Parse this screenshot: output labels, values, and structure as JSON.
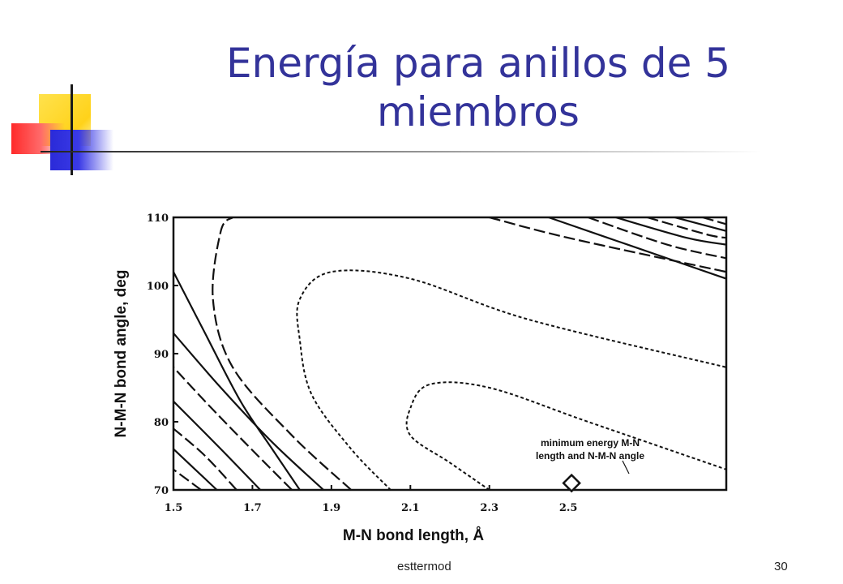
{
  "slide": {
    "title": "Energía para anillos de 5 miembros",
    "footer": "esttermod",
    "page_number": "30"
  },
  "chart_data": {
    "type": "contour",
    "xlabel": "M-N bond length, Å",
    "ylabel": "N-M-N bond angle, deg",
    "xlim": [
      1.5,
      2.9
    ],
    "ylim": [
      70,
      110
    ],
    "x_ticks": [
      "1.5",
      "1.7",
      "1.9",
      "2.1",
      "2.3",
      "2.5"
    ],
    "y_ticks": [
      "70",
      "80",
      "90",
      "100",
      "110"
    ],
    "annotation": {
      "lines": [
        "minimum energy M-N",
        "length and N-M-N angle"
      ],
      "x": 2.5,
      "y": 71
    },
    "minimum_marker": {
      "x": 2.5,
      "y": 71
    },
    "contours": [
      {
        "style": "dashed-fine",
        "points": [
          [
            2.3,
            70
          ],
          [
            2.2,
            74
          ],
          [
            2.1,
            78
          ],
          [
            2.1,
            82
          ],
          [
            2.15,
            85.5
          ],
          [
            2.3,
            85
          ],
          [
            2.55,
            80
          ],
          [
            2.9,
            73
          ]
        ]
      },
      {
        "style": "dashed-fine",
        "points": [
          [
            2.05,
            70
          ],
          [
            1.95,
            76
          ],
          [
            1.85,
            84
          ],
          [
            1.82,
            92
          ],
          [
            1.82,
            98
          ],
          [
            1.9,
            102
          ],
          [
            2.1,
            101
          ],
          [
            2.4,
            95
          ],
          [
            2.9,
            88
          ]
        ]
      },
      {
        "style": "dash",
        "points": [
          [
            1.95,
            70
          ],
          [
            1.8,
            78
          ],
          [
            1.65,
            88
          ],
          [
            1.6,
            98
          ],
          [
            1.62,
            108
          ],
          [
            1.65,
            110
          ]
        ]
      },
      {
        "style": "dash",
        "points": [
          [
            2.3,
            110
          ],
          [
            2.5,
            107
          ],
          [
            2.9,
            102
          ]
        ]
      },
      {
        "style": "solid",
        "points": [
          [
            1.88,
            70
          ],
          [
            1.75,
            77
          ],
          [
            1.62,
            85
          ],
          [
            1.5,
            93
          ]
        ]
      },
      {
        "style": "solid",
        "points": [
          [
            2.45,
            110
          ],
          [
            2.65,
            106
          ],
          [
            2.9,
            101
          ]
        ]
      },
      {
        "style": "dash",
        "points": [
          [
            1.8,
            70
          ],
          [
            1.68,
            77
          ],
          [
            1.58,
            83
          ],
          [
            1.5,
            88
          ]
        ]
      },
      {
        "style": "dash",
        "points": [
          [
            2.55,
            110
          ],
          [
            2.75,
            106
          ],
          [
            2.9,
            104
          ]
        ]
      },
      {
        "style": "solid",
        "points": [
          [
            1.72,
            70
          ],
          [
            1.62,
            76
          ],
          [
            1.5,
            83
          ]
        ]
      },
      {
        "style": "solid",
        "points": [
          [
            2.62,
            110
          ],
          [
            2.8,
            107
          ],
          [
            2.9,
            106
          ]
        ]
      },
      {
        "style": "dash",
        "points": [
          [
            1.66,
            70
          ],
          [
            1.58,
            75
          ],
          [
            1.5,
            79
          ]
        ]
      },
      {
        "style": "dash",
        "points": [
          [
            2.7,
            110
          ],
          [
            2.85,
            107.5
          ],
          [
            2.9,
            107
          ]
        ]
      },
      {
        "style": "solid",
        "points": [
          [
            1.61,
            70
          ],
          [
            1.5,
            76
          ]
        ]
      },
      {
        "style": "solid",
        "points": [
          [
            2.77,
            110
          ],
          [
            2.9,
            108
          ]
        ]
      },
      {
        "style": "dash",
        "points": [
          [
            1.57,
            70
          ],
          [
            1.5,
            73
          ]
        ]
      },
      {
        "style": "dash",
        "points": [
          [
            2.84,
            110
          ],
          [
            2.9,
            109
          ]
        ]
      },
      {
        "style": "solid",
        "points": [
          [
            1.5,
            102
          ],
          [
            1.58,
            93
          ],
          [
            1.67,
            83
          ],
          [
            1.75,
            76
          ],
          [
            1.82,
            70
          ]
        ]
      }
    ]
  }
}
